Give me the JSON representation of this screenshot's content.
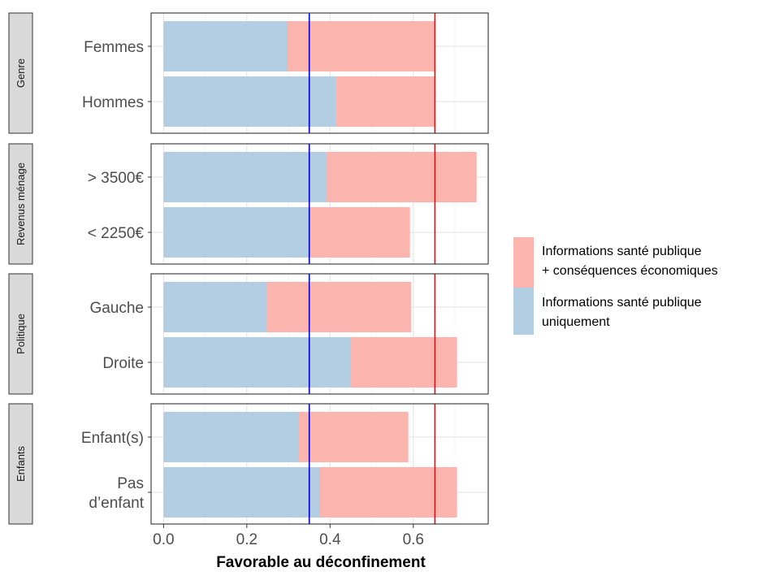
{
  "chart_data": {
    "type": "bar",
    "orientation": "horizontal",
    "stacked": false,
    "xlabel": "Favorable au déconfinement",
    "xlim": [
      -0.03,
      0.78
    ],
    "x_ticks": [
      0.0,
      0.2,
      0.4,
      0.6
    ],
    "x_tick_labels": [
      "0.0",
      "0.2",
      "0.4",
      "0.6"
    ],
    "grid": true,
    "legend_position": "right",
    "colors": {
      "eco": "#fbb4ae",
      "sante": "#b3cde3",
      "blue_line": "#0000cc",
      "red_line": "#ff0000"
    },
    "reference_lines": [
      {
        "value": 0.35,
        "color": "#0000cc"
      },
      {
        "value": 0.652,
        "color": "#ff0000"
      }
    ],
    "legend": [
      {
        "key": "eco",
        "lines": [
          "Informations santé publique",
          "+ conséquences économiques"
        ]
      },
      {
        "key": "sante",
        "lines": [
          "Informations santé publique",
          "uniquement"
        ]
      }
    ],
    "facets": [
      {
        "label": "Genre",
        "categories": [
          {
            "label": [
              "Femmes"
            ],
            "eco": 0.652,
            "sante": 0.298
          },
          {
            "label": [
              "Hommes"
            ],
            "eco": 0.652,
            "sante": 0.415
          }
        ]
      },
      {
        "label": "Revenus ménage",
        "categories": [
          {
            "label": [
              "> 3500€"
            ],
            "eco": 0.752,
            "sante": 0.392
          },
          {
            "label": [
              "< 2250€"
            ],
            "eco": 0.592,
            "sante": 0.352
          }
        ]
      },
      {
        "label": "Politique",
        "categories": [
          {
            "label": [
              "Gauche"
            ],
            "eco": 0.595,
            "sante": 0.248
          },
          {
            "label": [
              "Droite"
            ],
            "eco": 0.705,
            "sante": 0.45
          }
        ]
      },
      {
        "label": "Enfants",
        "categories": [
          {
            "label": [
              "Enfant(s)"
            ],
            "eco": 0.588,
            "sante": 0.325
          },
          {
            "label": [
              "Pas",
              "d’enfant"
            ],
            "eco": 0.705,
            "sante": 0.375
          }
        ]
      }
    ]
  }
}
